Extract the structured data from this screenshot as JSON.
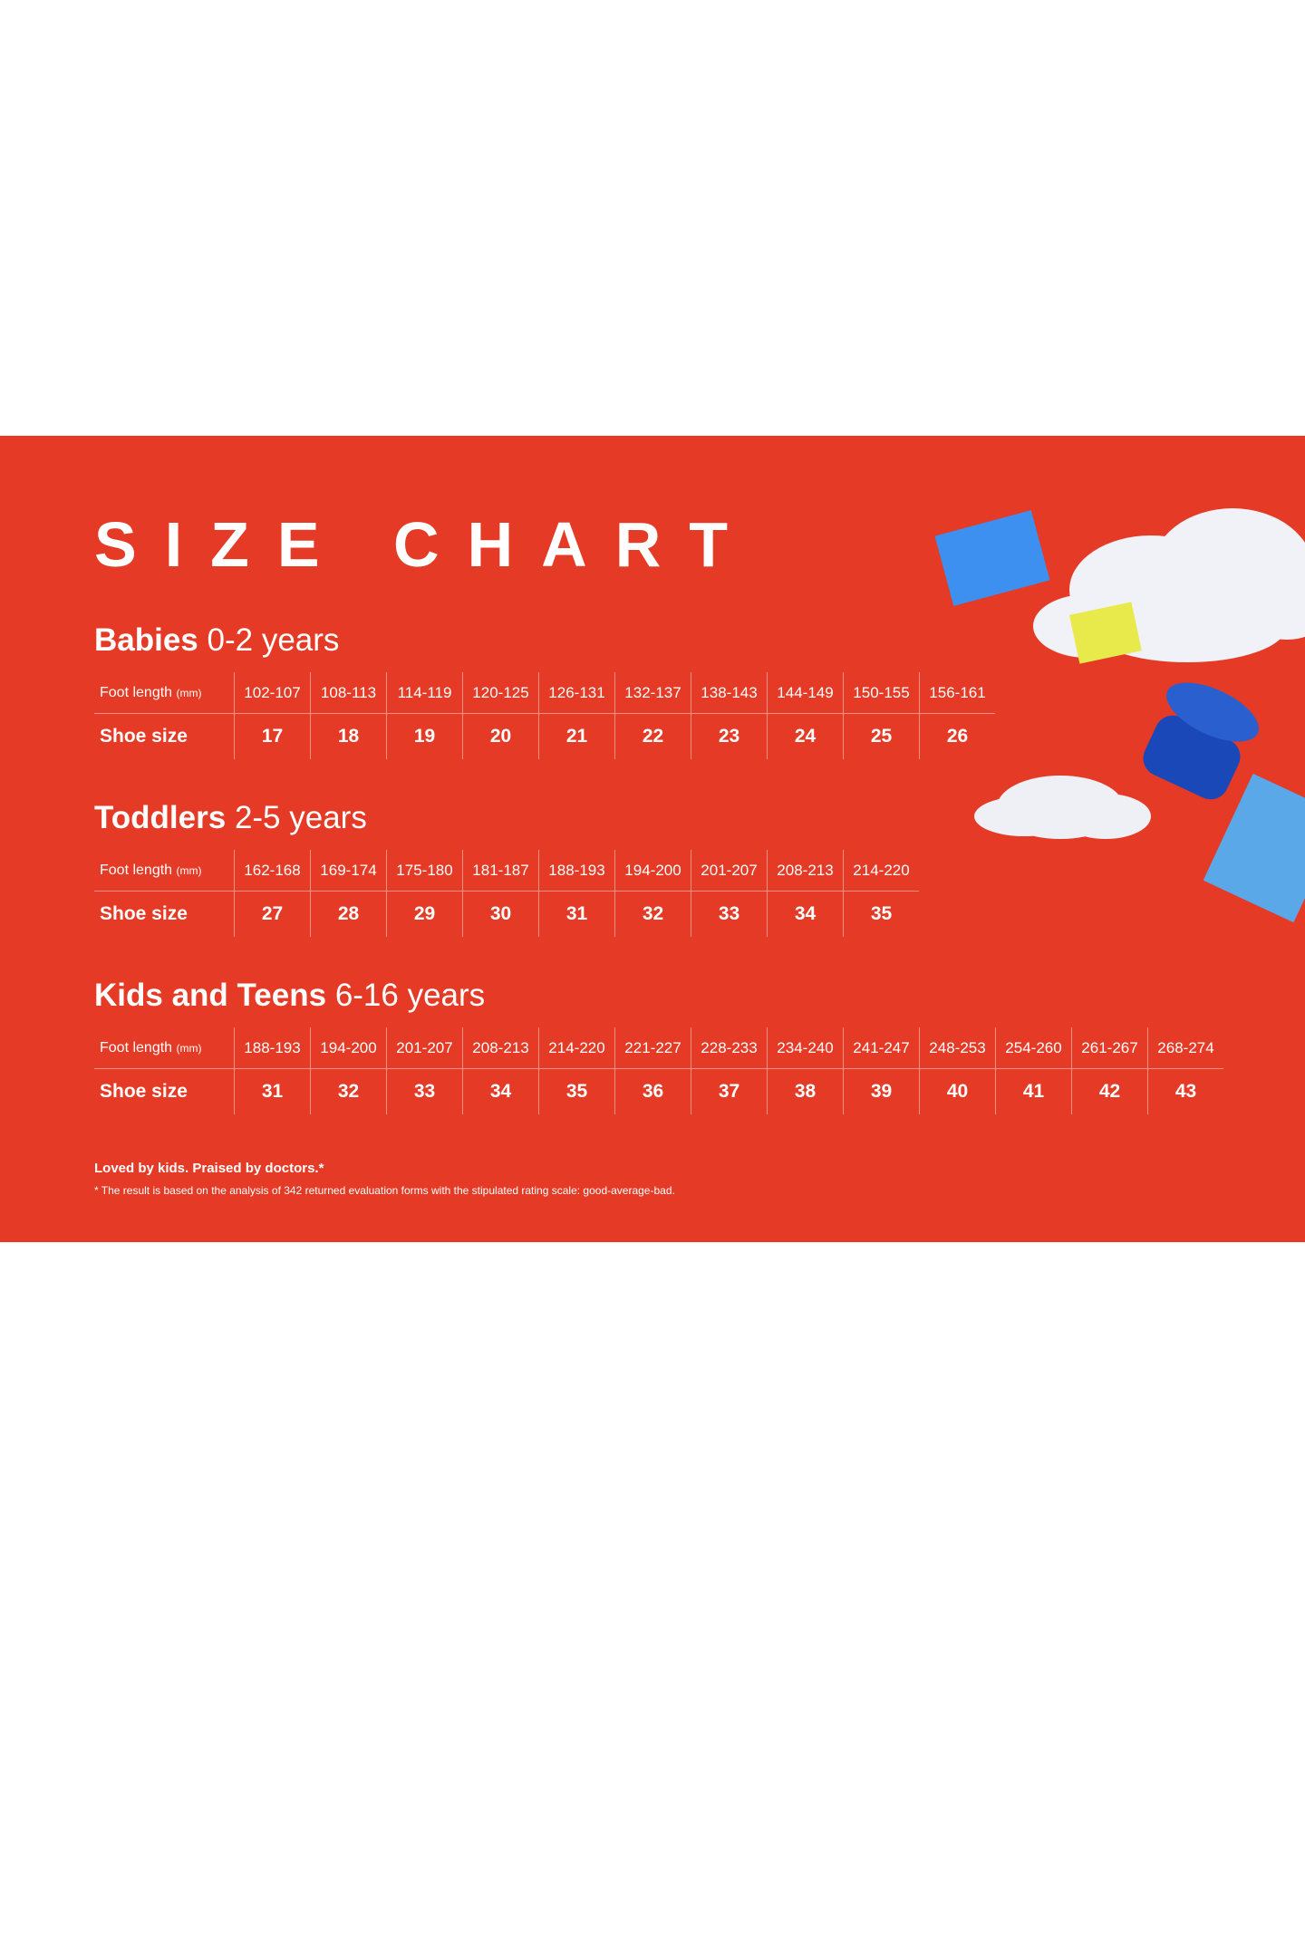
{
  "title": "SIZE CHART",
  "foot_length_label": "Foot length",
  "foot_length_unit": "(mm)",
  "shoe_size_label": "Shoe size",
  "sections": [
    {
      "name": "Babies",
      "range": "0-2 years",
      "lengths": [
        "102-107",
        "108-113",
        "114-119",
        "120-125",
        "126-131",
        "132-137",
        "138-143",
        "144-149",
        "150-155",
        "156-161"
      ],
      "sizes": [
        "17",
        "18",
        "19",
        "20",
        "21",
        "22",
        "23",
        "24",
        "25",
        "26"
      ]
    },
    {
      "name": "Toddlers",
      "range": "2-5 years",
      "lengths": [
        "162-168",
        "169-174",
        "175-180",
        "181-187",
        "188-193",
        "194-200",
        "201-207",
        "208-213",
        "214-220"
      ],
      "sizes": [
        "27",
        "28",
        "29",
        "30",
        "31",
        "32",
        "33",
        "34",
        "35"
      ]
    },
    {
      "name": "Kids and Teens",
      "range": "6-16 years",
      "lengths": [
        "188-193",
        "194-200",
        "201-207",
        "208-213",
        "214-220",
        "221-227",
        "228-233",
        "234-240",
        "241-247",
        "248-253",
        "254-260",
        "261-267",
        "268-274"
      ],
      "sizes": [
        "31",
        "32",
        "33",
        "34",
        "35",
        "36",
        "37",
        "38",
        "39",
        "40",
        "41",
        "42",
        "43"
      ]
    }
  ],
  "footer": {
    "tagline": "Loved by kids. Praised by doctors.*",
    "note": "* The result is based on the analysis of 342 returned evaluation forms with the stipulated rating scale: good-average-bad."
  },
  "colors": {
    "background": "#e53a25",
    "text": "#ffffff"
  }
}
